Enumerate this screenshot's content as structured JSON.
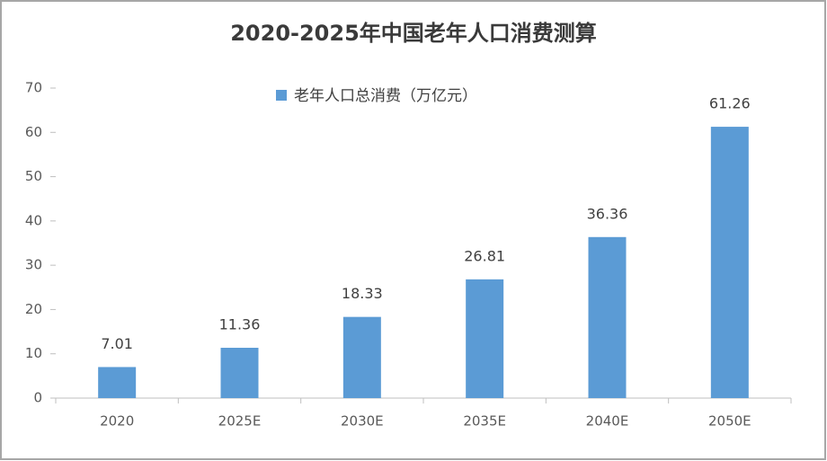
{
  "chart_data": {
    "type": "bar",
    "title": "2020-2025年中国老年人口消费测算",
    "categories": [
      "2020",
      "2025E",
      "2030E",
      "2035E",
      "2040E",
      "2050E"
    ],
    "series": [
      {
        "name": "老年人口总消费（万亿元）",
        "color": "#5b9bd5",
        "values": [
          7.01,
          11.36,
          18.33,
          26.81,
          36.36,
          61.26
        ]
      }
    ],
    "ylim": [
      0,
      70
    ],
    "yticks": [
      0,
      10,
      20,
      30,
      40,
      50,
      60,
      70
    ],
    "grid": false,
    "legend": "top"
  }
}
